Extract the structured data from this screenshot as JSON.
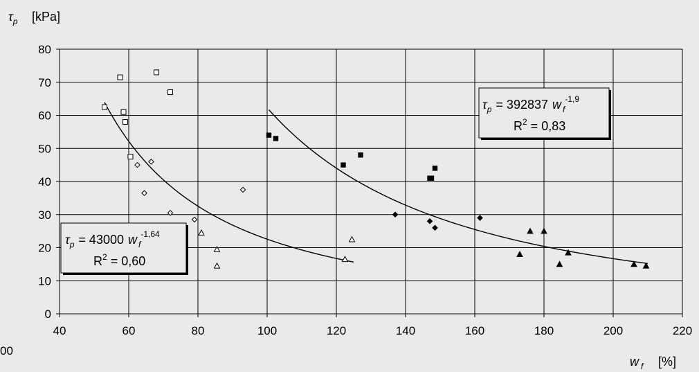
{
  "chart_data": {
    "type": "scatter",
    "title": "",
    "xlabel": {
      "symbol": "w",
      "sub": "f",
      "unit": "[%]"
    },
    "ylabel": {
      "symbol": "τ",
      "sub": "p",
      "unit": "[kPa]"
    },
    "xlim": [
      40,
      220
    ],
    "ylim": [
      0,
      80
    ],
    "xticks": [
      "40",
      "60",
      "80",
      "100",
      "120",
      "140",
      "160",
      "180",
      "200",
      "220"
    ],
    "yticks": [
      "0",
      "10",
      "20",
      "30",
      "40",
      "50",
      "60",
      "70",
      "80"
    ],
    "stray_label": "00",
    "grid": {
      "horizontal": true,
      "vertical": true
    },
    "series": [
      {
        "marker": "square-open",
        "points": [
          [
            53,
            62.5
          ],
          [
            57.5,
            71.5
          ],
          [
            58.5,
            61
          ],
          [
            59,
            58
          ],
          [
            60.5,
            47.5
          ],
          [
            68,
            73
          ],
          [
            72,
            67
          ]
        ]
      },
      {
        "marker": "diamond-open",
        "points": [
          [
            62.5,
            45
          ],
          [
            64.5,
            36.5
          ],
          [
            66.5,
            46
          ],
          [
            72,
            30.5
          ],
          [
            79,
            28.5
          ],
          [
            93,
            37.5
          ]
        ]
      },
      {
        "marker": "triangle-open",
        "points": [
          [
            81,
            24.5
          ],
          [
            85.5,
            19.5
          ],
          [
            85.5,
            14.5
          ],
          [
            122.5,
            16.5
          ],
          [
            124.5,
            22.5
          ]
        ]
      },
      {
        "marker": "square-filled",
        "points": [
          [
            100.5,
            54
          ],
          [
            102.5,
            53
          ],
          [
            122,
            45
          ],
          [
            127,
            48
          ],
          [
            147,
            41
          ],
          [
            147.5,
            41
          ],
          [
            148.5,
            44
          ]
        ]
      },
      {
        "marker": "diamond-filled",
        "points": [
          [
            137,
            30
          ],
          [
            147,
            28
          ],
          [
            148.5,
            26
          ],
          [
            161.5,
            29
          ]
        ]
      },
      {
        "marker": "triangle-filled",
        "points": [
          [
            173,
            18
          ],
          [
            176,
            25
          ],
          [
            180,
            25
          ],
          [
            184.5,
            15
          ],
          [
            187,
            18.5
          ],
          [
            206,
            15
          ],
          [
            209.5,
            14.5
          ]
        ]
      }
    ],
    "trendlines": [
      {
        "coef": 43000,
        "exp": -1.64,
        "x_range": [
          53,
          125
        ]
      },
      {
        "coef": 392837,
        "exp": -1.9,
        "x_range": [
          100.5,
          210
        ]
      }
    ],
    "annotations": [
      {
        "symbol": "τ",
        "sub": "p",
        "eq": "= 43000",
        "var": "w",
        "var_sub": "f",
        "exp": "-1,64",
        "r2_label": "R",
        "r2_sup": "2",
        "r2_value": "= 0,60"
      },
      {
        "symbol": "τ",
        "sub": "p",
        "eq": "= 392837",
        "var": "w",
        "var_sub": "f",
        "exp": "-1,9",
        "r2_label": "R",
        "r2_sup": "2",
        "r2_value": "= 0,83"
      }
    ]
  }
}
